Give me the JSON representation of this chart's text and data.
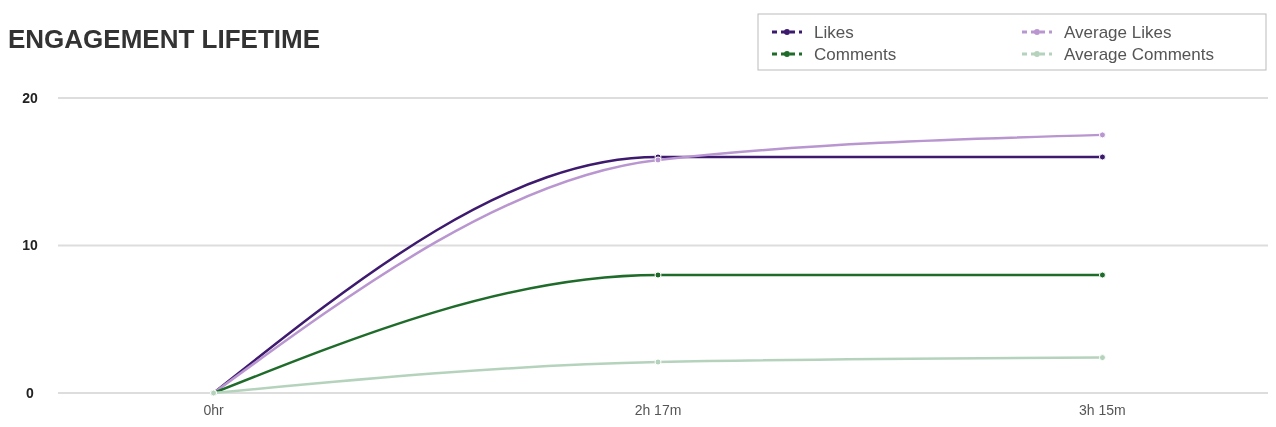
{
  "chart_data": {
    "type": "line",
    "title": "ENGAGEMENT LIFETIME",
    "categories": [
      "0hr",
      "2h 17m",
      "3h 15m"
    ],
    "series": [
      {
        "name": "Likes",
        "color": "#3d1a6e",
        "values": [
          0,
          16,
          16
        ]
      },
      {
        "name": "Average Likes",
        "color": "#b996d0",
        "values": [
          0,
          15.8,
          17.5
        ]
      },
      {
        "name": "Comments",
        "color": "#1e6b2a",
        "values": [
          0,
          8,
          8
        ]
      },
      {
        "name": "Average Comments",
        "color": "#b5d3bc",
        "values": [
          0,
          2.1,
          2.4
        ]
      }
    ],
    "ylim": [
      0,
      20
    ],
    "yticks": [
      0,
      10,
      20
    ],
    "grid": "y",
    "legend": "top right",
    "marker": "circle",
    "line_style": "solid"
  }
}
